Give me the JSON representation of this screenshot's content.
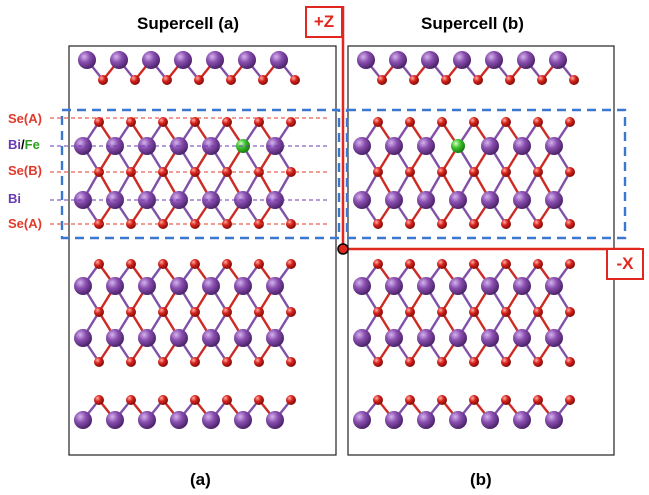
{
  "panels": {
    "a": {
      "title": "Supercell (a)",
      "caption": "(a)"
    },
    "b": {
      "title": "Supercell (b)",
      "caption": "(b)"
    }
  },
  "axes": {
    "z_label": "+Z",
    "x_label": "-X"
  },
  "layer_labels": {
    "se_a_top": "Se(A)",
    "bi_part": "Bi",
    "slash": "/",
    "fe_part": "Fe",
    "se_b": "Se(B)",
    "bi": "Bi",
    "se_a_bottom": "Se(A)"
  },
  "colors": {
    "bi_atom": "#8a4fb0",
    "se_atom": "#d8221c",
    "fe_atom": "#3fc12e",
    "bond_red": "#cc2a22",
    "bond_purple": "#8050a8",
    "dashed_box": "#3a78d0",
    "axis_red": "#e0281e",
    "label_red": "#e03a2a",
    "label_purple": "#6a3ab0",
    "label_green": "#2aa01e"
  }
}
